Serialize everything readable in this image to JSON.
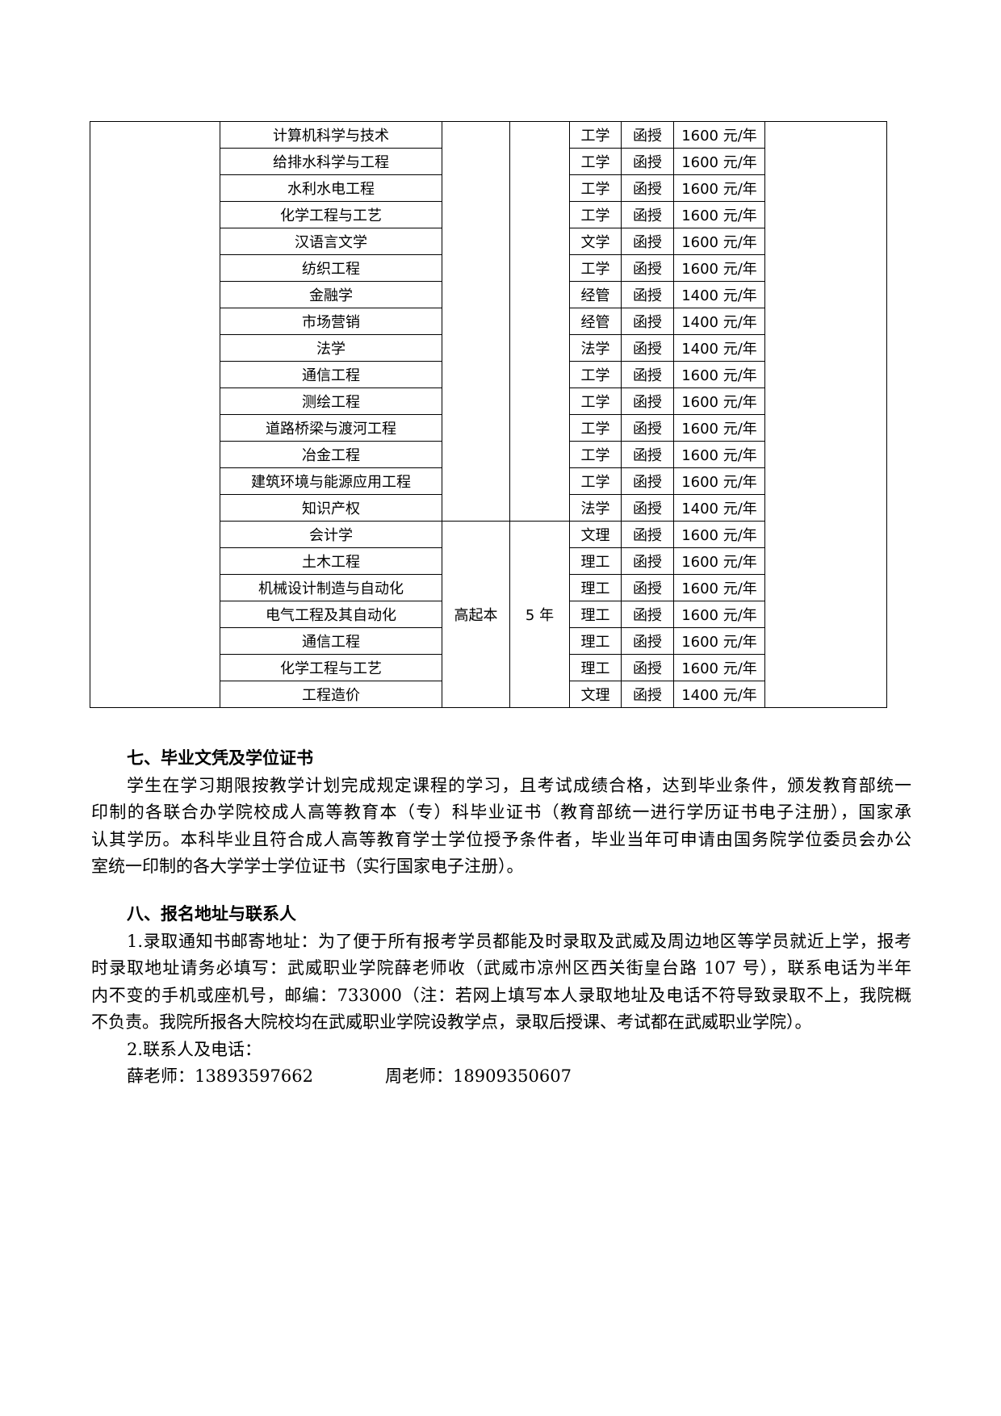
{
  "table": {
    "rows": [
      {
        "major": "计算机科学与技术",
        "category": "工学",
        "mode": "函授",
        "fee": "1600 元/年"
      },
      {
        "major": "给排水科学与工程",
        "category": "工学",
        "mode": "函授",
        "fee": "1600 元/年"
      },
      {
        "major": "水利水电工程",
        "category": "工学",
        "mode": "函授",
        "fee": "1600 元/年"
      },
      {
        "major": "化学工程与工艺",
        "category": "工学",
        "mode": "函授",
        "fee": "1600 元/年"
      },
      {
        "major": "汉语言文学",
        "category": "文学",
        "mode": "函授",
        "fee": "1600 元/年"
      },
      {
        "major": "纺织工程",
        "category": "工学",
        "mode": "函授",
        "fee": "1600 元/年"
      },
      {
        "major": "金融学",
        "category": "经管",
        "mode": "函授",
        "fee": "1400 元/年"
      },
      {
        "major": "市场营销",
        "category": "经管",
        "mode": "函授",
        "fee": "1400 元/年"
      },
      {
        "major": "法学",
        "category": "法学",
        "mode": "函授",
        "fee": "1400 元/年"
      },
      {
        "major": "通信工程",
        "category": "工学",
        "mode": "函授",
        "fee": "1600 元/年"
      },
      {
        "major": "测绘工程",
        "category": "工学",
        "mode": "函授",
        "fee": "1600 元/年"
      },
      {
        "major": "道路桥梁与渡河工程",
        "category": "工学",
        "mode": "函授",
        "fee": "1600 元/年"
      },
      {
        "major": "冶金工程",
        "category": "工学",
        "mode": "函授",
        "fee": "1600 元/年"
      },
      {
        "major": "建筑环境与能源应用工程",
        "category": "工学",
        "mode": "函授",
        "fee": "1600 元/年"
      },
      {
        "major": "知识产权",
        "category": "法学",
        "mode": "函授",
        "fee": "1400 元/年"
      },
      {
        "major": "会计学",
        "category": "文理",
        "mode": "函授",
        "fee": "1600 元/年"
      },
      {
        "major": "土木工程",
        "category": "理工",
        "mode": "函授",
        "fee": "1600 元/年"
      },
      {
        "major": "机械设计制造与自动化",
        "category": "理工",
        "mode": "函授",
        "fee": "1600 元/年"
      },
      {
        "major": "电气工程及其自动化",
        "category": "理工",
        "mode": "函授",
        "fee": "1600 元/年"
      },
      {
        "major": "通信工程",
        "category": "理工",
        "mode": "函授",
        "fee": "1600 元/年"
      },
      {
        "major": "化学工程与工艺",
        "category": "理工",
        "mode": "函授",
        "fee": "1600 元/年"
      },
      {
        "major": "工程造价",
        "category": "文理",
        "mode": "函授",
        "fee": "1400 元/年"
      }
    ],
    "group2": {
      "level": "高起本",
      "duration": "5 年"
    }
  },
  "section7": {
    "heading": "七、毕业文凭及学位证书",
    "lines": [
      "学生在学习期限按教学计划完成规定课程的学习，且考试成绩合格，达到毕业条件，颁发教育部统一",
      "印制的各联合办学院校成人高等教育本（专）科毕业证书（教育部统一进行学历证书电子注册），国家承",
      "认其学历。本科毕业且符合成人高等教育学士学位授予条件者，毕业当年可申请由国务院学位委员会办公",
      "室统一印制的各大学学士学位证书（实行国家电子注册）。"
    ]
  },
  "section8": {
    "heading": "八、报名地址与联系人",
    "lines": [
      "1.录取通知书邮寄地址：为了便于所有报考学员都能及时录取及武威及周边地区等学员就近上学，报考",
      "时录取地址请务必填写：武威职业学院薛老师收（武威市凉州区西关街皇台路 107 号），联系电话为半年",
      "内不变的手机或座机号，邮编：733000（注：若网上填写本人录取地址及电话不符导致录取不上，我院概",
      "不负责。我院所报各大院校均在武威职业学院设教学点，录取后授课、考试都在武威职业学院）。"
    ],
    "contacts_label": "2.联系人及电话：",
    "contacts": [
      {
        "text": "薛老师：13893597662"
      },
      {
        "text": "周老师：18909350607"
      }
    ]
  }
}
